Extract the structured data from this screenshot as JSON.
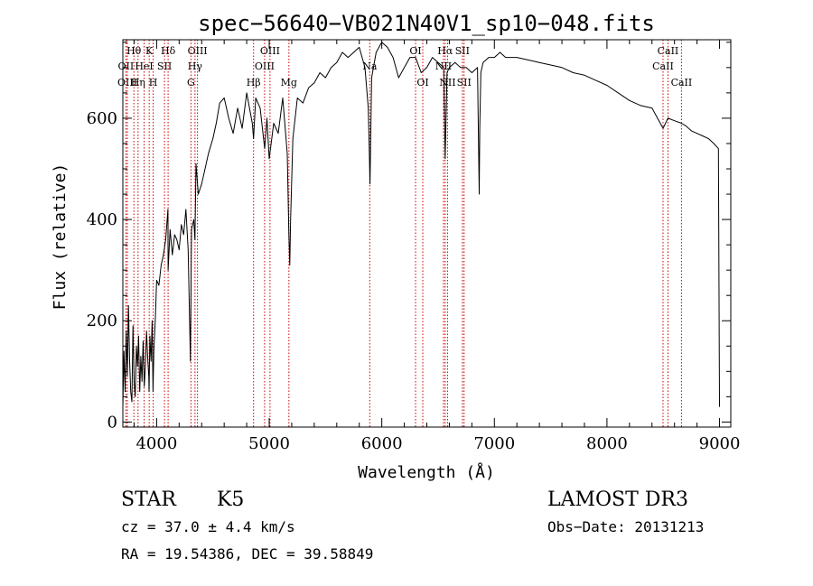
{
  "chart_data": {
    "type": "line",
    "title": "spec−56640−VB021N40V1_sp10−048.fits",
    "xlabel": "Wavelength (Å)",
    "ylabel": "Flux (relative)",
    "xlim": [
      3700,
      9100
    ],
    "ylim": [
      -10,
      755
    ],
    "xticks": [
      4000,
      5000,
      6000,
      7000,
      8000,
      9000
    ],
    "yticks": [
      0,
      200,
      400,
      600
    ],
    "minor_xstep": 200,
    "minor_ystep": 50,
    "series": [
      {
        "name": "spectrum",
        "x": [
          3700,
          3710,
          3720,
          3730,
          3740,
          3750,
          3760,
          3770,
          3780,
          3790,
          3800,
          3810,
          3820,
          3830,
          3840,
          3850,
          3860,
          3870,
          3880,
          3890,
          3900,
          3910,
          3920,
          3930,
          3933,
          3940,
          3950,
          3960,
          3968,
          3975,
          3990,
          4000,
          4020,
          4040,
          4060,
          4080,
          4100,
          4102,
          4120,
          4140,
          4160,
          4180,
          4200,
          4220,
          4240,
          4260,
          4280,
          4300,
          4310,
          4330,
          4340,
          4350,
          4370,
          4400,
          4430,
          4460,
          4500,
          4530,
          4560,
          4600,
          4640,
          4680,
          4720,
          4760,
          4800,
          4850,
          4861,
          4880,
          4920,
          4960,
          4980,
          5000,
          5040,
          5080,
          5120,
          5160,
          5175,
          5183,
          5190,
          5210,
          5250,
          5300,
          5350,
          5400,
          5450,
          5500,
          5550,
          5600,
          5650,
          5700,
          5750,
          5800,
          5850,
          5880,
          5890,
          5895,
          5900,
          5910,
          5950,
          6000,
          6050,
          6100,
          6150,
          6200,
          6250,
          6300,
          6350,
          6400,
          6450,
          6500,
          6550,
          6563,
          6580,
          6600,
          6650,
          6700,
          6750,
          6800,
          6850,
          6865,
          6870,
          6880,
          6900,
          6950,
          7000,
          7050,
          7100,
          7200,
          7300,
          7400,
          7500,
          7600,
          7700,
          7800,
          7900,
          8000,
          8100,
          8200,
          8300,
          8400,
          8498,
          8542,
          8600,
          8662,
          8700,
          8750,
          8800,
          8850,
          8900,
          8950,
          8990,
          9000
        ],
        "y": [
          30,
          140,
          60,
          180,
          90,
          230,
          120,
          60,
          40,
          190,
          80,
          50,
          150,
          110,
          170,
          60,
          130,
          80,
          160,
          70,
          110,
          180,
          130,
          90,
          60,
          170,
          120,
          200,
          60,
          140,
          210,
          280,
          270,
          310,
          330,
          360,
          420,
          300,
          380,
          330,
          370,
          360,
          340,
          390,
          370,
          420,
          340,
          120,
          380,
          400,
          360,
          510,
          450,
          470,
          500,
          530,
          560,
          590,
          630,
          640,
          600,
          570,
          620,
          580,
          650,
          590,
          560,
          640,
          620,
          540,
          600,
          520,
          590,
          570,
          640,
          530,
          370,
          310,
          400,
          560,
          640,
          630,
          660,
          670,
          690,
          680,
          700,
          710,
          730,
          720,
          730,
          740,
          700,
          620,
          530,
          470,
          540,
          680,
          730,
          750,
          740,
          720,
          680,
          700,
          720,
          720,
          690,
          700,
          720,
          710,
          700,
          520,
          690,
          700,
          710,
          700,
          700,
          690,
          700,
          450,
          580,
          690,
          710,
          720,
          720,
          730,
          720,
          720,
          715,
          710,
          705,
          700,
          690,
          685,
          675,
          665,
          650,
          635,
          625,
          620,
          580,
          600,
          595,
          590,
          585,
          575,
          570,
          565,
          560,
          550,
          540,
          30
        ],
        "color": "#000000"
      }
    ],
    "spectral_lines": [
      {
        "label": "Hθ",
        "wavelength": 3798,
        "row": 0
      },
      {
        "label": "OII",
        "wavelength": 3727,
        "row": 1
      },
      {
        "label": "OIII",
        "wavelength": 3740,
        "row": 2
      },
      {
        "label": "K",
        "wavelength": 3934,
        "row": 0
      },
      {
        "label": "HeI",
        "wavelength": 3889,
        "row": 1
      },
      {
        "label": "Hη",
        "wavelength": 3835,
        "row": 2
      },
      {
        "label": "Hδ",
        "wavelength": 4102,
        "row": 0
      },
      {
        "label": "SII",
        "wavelength": 4070,
        "row": 1
      },
      {
        "label": "H",
        "wavelength": 3969,
        "row": 2
      },
      {
        "label": "OIII",
        "wavelength": 4363,
        "row": 0
      },
      {
        "label": "Hγ",
        "wavelength": 4341,
        "row": 1
      },
      {
        "label": "G",
        "wavelength": 4305,
        "row": 2
      },
      {
        "label": "OIII",
        "wavelength": 5007,
        "row": 0
      },
      {
        "label": "OIII",
        "wavelength": 4959,
        "row": 1
      },
      {
        "label": "Hβ",
        "wavelength": 4861,
        "row": 2
      },
      {
        "label": "Mg",
        "wavelength": 5175,
        "row": 3
      },
      {
        "label": "Na",
        "wavelength": 5893,
        "row": 1
      },
      {
        "label": "OI",
        "wavelength": 6300,
        "row": 0
      },
      {
        "label": "OI",
        "wavelength": 6364,
        "row": 2
      },
      {
        "label": "Hα",
        "wavelength": 6563,
        "row": 0
      },
      {
        "label": "SII",
        "wavelength": 6716,
        "row": 0
      },
      {
        "label": "NII",
        "wavelength": 6548,
        "row": 1
      },
      {
        "label": "NII",
        "wavelength": 6584,
        "row": 2
      },
      {
        "label": "SII",
        "wavelength": 6731,
        "row": 2
      },
      {
        "label": "CaII",
        "wavelength": 8542,
        "row": 0
      },
      {
        "label": "CaII",
        "wavelength": 8498,
        "row": 1
      },
      {
        "label": "CaII",
        "wavelength": 8662,
        "row": 2
      }
    ],
    "line_color": "#cc0000"
  },
  "info": {
    "object_class": "STAR",
    "subclass": "K5",
    "survey": "LAMOST DR3",
    "cz": "cz = 37.0 ± 4.4 km/s",
    "obs_date": "Obs−Date: 20131213",
    "coords": "RA =  19.54386, DEC =  39.58849"
  }
}
